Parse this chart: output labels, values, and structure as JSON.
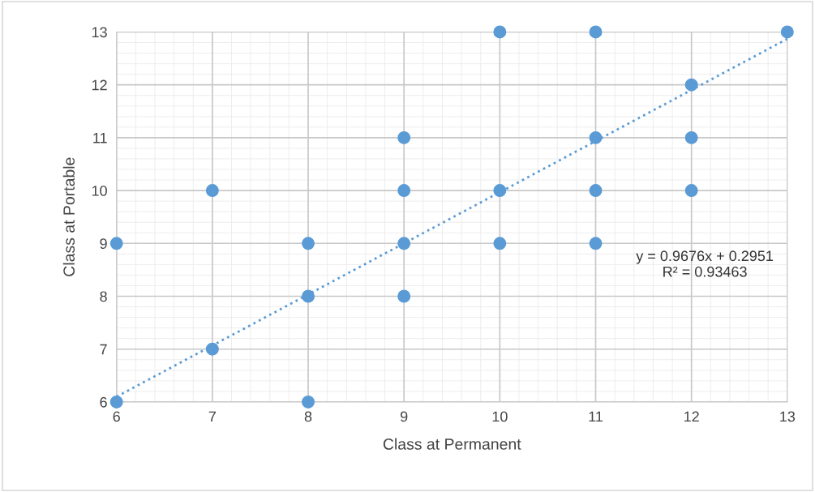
{
  "chart_data": {
    "type": "scatter",
    "xlabel": "Class at Permanent",
    "ylabel": "Class at Portable",
    "xlim": [
      6,
      13
    ],
    "ylim": [
      6,
      13
    ],
    "xticks": [
      6,
      7,
      8,
      9,
      10,
      11,
      12,
      13
    ],
    "yticks": [
      6,
      7,
      8,
      9,
      10,
      11,
      12,
      13
    ],
    "grid": true,
    "series": [
      {
        "color": "#5b9bd5",
        "marker": "circle",
        "x": [
          6,
          6,
          7,
          7,
          8,
          8,
          8,
          9,
          9,
          9,
          9,
          10,
          10,
          10,
          11,
          11,
          11,
          11,
          12,
          12,
          12,
          13
        ],
        "values": [
          9,
          6,
          10,
          7,
          9,
          8,
          6,
          11,
          10,
          9,
          8,
          13,
          10,
          9,
          13,
          11,
          10,
          9,
          12,
          11,
          10,
          13
        ]
      },
      {
        "type": "line",
        "color": "#5b9bd5",
        "line_style": "dotted",
        "x": [
          6,
          13
        ],
        "values": [
          6.1,
          12.87
        ]
      }
    ],
    "annotations": [
      "y = 0.9676x + 0.2951\nR² = 0.93463"
    ]
  }
}
